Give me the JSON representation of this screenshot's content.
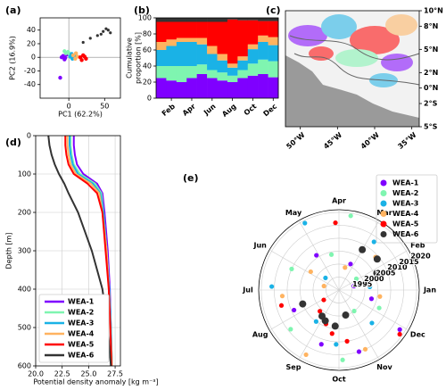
{
  "chart_data": [
    {
      "type": "scatter",
      "label": "(a)",
      "xlabel": "PC1 (62.2%)",
      "ylabel": "PC2 (16.9%)",
      "xlim": [
        -40,
        72
      ],
      "ylim": [
        -60,
        58
      ],
      "xticks": [
        0,
        50
      ],
      "yticks": [
        -40,
        -20,
        0,
        20,
        40
      ],
      "series": [
        {
          "name": "WEA-1",
          "color": "#7f00ff",
          "x": [
            -8,
            -5,
            -3,
            -10,
            -6,
            -12
          ],
          "values": [
            2,
            -1,
            4,
            0,
            -3,
            -30
          ]
        },
        {
          "name": "WEA-2",
          "color": "#7ff5b0",
          "x": [
            -4,
            -1,
            2,
            -6,
            1
          ],
          "values": [
            6,
            8,
            3,
            9,
            5
          ]
        },
        {
          "name": "WEA-3",
          "color": "#1ab2e6",
          "x": [
            2,
            5,
            8,
            4,
            7
          ],
          "values": [
            1,
            -2,
            2,
            5,
            -1
          ]
        },
        {
          "name": "WEA-4",
          "color": "#ffb360",
          "x": [
            6,
            10,
            12,
            9
          ],
          "values": [
            3,
            6,
            1,
            -2
          ]
        },
        {
          "name": "WEA-5",
          "color": "#ff0000",
          "x": [
            16,
            20,
            24,
            18,
            22
          ],
          "values": [
            0,
            3,
            -2,
            -4,
            1
          ]
        },
        {
          "name": "WEA-6",
          "color": "#333333",
          "x": [
            20,
            30,
            40,
            48,
            52,
            55,
            58,
            45
          ],
          "values": [
            22,
            28,
            32,
            38,
            42,
            40,
            36,
            34
          ]
        }
      ]
    },
    {
      "type": "stacked-bar",
      "label": "(b)",
      "ylabel": [
        "Cumulative",
        "proportion [%]"
      ],
      "categories": [
        null,
        "Feb",
        null,
        "Apr",
        null,
        "Jun",
        null,
        "Aug",
        null,
        "Oct",
        null,
        "Dec"
      ],
      "ylim": [
        0,
        100
      ],
      "yticks": [
        0,
        20,
        40,
        60,
        80,
        100
      ],
      "series": [
        {
          "name": "WEA-1",
          "color": "#7f00ff",
          "values": [
            25,
            22,
            20,
            25,
            30,
            25,
            22,
            20,
            25,
            28,
            30,
            26
          ]
        },
        {
          "name": "WEA-2",
          "color": "#7ff5b0",
          "values": [
            15,
            18,
            20,
            15,
            12,
            10,
            10,
            8,
            10,
            15,
            18,
            20
          ]
        },
        {
          "name": "WEA-3",
          "color": "#1ab2e6",
          "values": [
            20,
            25,
            30,
            30,
            25,
            20,
            15,
            10,
            12,
            18,
            22,
            20
          ]
        },
        {
          "name": "WEA-4",
          "color": "#ffb360",
          "values": [
            10,
            8,
            5,
            5,
            8,
            10,
            8,
            5,
            5,
            6,
            8,
            10
          ]
        },
        {
          "name": "WEA-5",
          "color": "#ff0000",
          "values": [
            25,
            22,
            20,
            20,
            20,
            30,
            40,
            55,
            45,
            30,
            18,
            20
          ]
        },
        {
          "name": "WEA-6",
          "color": "#333333",
          "values": [
            5,
            5,
            5,
            5,
            5,
            5,
            5,
            2,
            3,
            3,
            4,
            4
          ]
        }
      ]
    },
    {
      "type": "map",
      "label": "(c)",
      "xlim": [
        -52,
        -34
      ],
      "ylim": [
        -5,
        10
      ],
      "xticks": [
        {
          "value": -50,
          "label": "50°W"
        },
        {
          "value": -45,
          "label": "45°W"
        },
        {
          "value": -40,
          "label": "40°W"
        },
        {
          "value": -35,
          "label": "35°W"
        }
      ],
      "yticks": [
        {
          "value": 10,
          "label": "10°N"
        },
        {
          "value": 8,
          "label": "8°N"
        },
        {
          "value": 5,
          "label": "5°N"
        },
        {
          "value": 2,
          "label": "2°N"
        },
        {
          "value": 0,
          "label": "0°N"
        },
        {
          "value": -2,
          "label": "2°S"
        },
        {
          "value": -5,
          "label": "5°S"
        }
      ]
    },
    {
      "type": "profile",
      "label": "(d)",
      "xlabel": "Potential density anomaly [kg m⁻³]",
      "ylabel": "Depth [m]",
      "xlim": [
        20,
        28
      ],
      "ylim": [
        600,
        0
      ],
      "grid": true,
      "xticks": [
        {
          "value": 20,
          "label": "20.0"
        },
        {
          "value": 22.5,
          "label": "22.5"
        },
        {
          "value": 25,
          "label": "25.0"
        },
        {
          "value": 27.5,
          "label": "27.5"
        }
      ],
      "yticks": [
        0,
        100,
        200,
        300,
        400,
        500,
        600
      ],
      "y": [
        0,
        25,
        50,
        75,
        100,
        125,
        150,
        200,
        300,
        400,
        500,
        600
      ],
      "series": [
        {
          "name": "WEA-1",
          "color": "#7f00ff",
          "values": [
            23.6,
            23.6,
            23.7,
            23.9,
            24.5,
            25.8,
            26.3,
            26.5,
            26.8,
            27.0,
            27.1,
            27.2
          ]
        },
        {
          "name": "WEA-2",
          "color": "#7ff5b0",
          "values": [
            23.3,
            23.3,
            23.4,
            23.6,
            24.2,
            25.6,
            26.2,
            26.4,
            26.7,
            26.95,
            27.1,
            27.2
          ]
        },
        {
          "name": "WEA-3",
          "color": "#1ab2e6",
          "values": [
            23.2,
            23.2,
            23.3,
            23.5,
            24.0,
            25.4,
            26.1,
            26.4,
            26.7,
            26.95,
            27.1,
            27.2
          ]
        },
        {
          "name": "WEA-4",
          "color": "#ffb360",
          "values": [
            23.0,
            23.0,
            23.1,
            23.3,
            23.8,
            25.2,
            26.0,
            26.3,
            26.7,
            26.9,
            27.05,
            27.2
          ]
        },
        {
          "name": "WEA-5",
          "color": "#ff0000",
          "values": [
            22.8,
            22.8,
            22.9,
            23.1,
            23.6,
            24.9,
            25.8,
            26.3,
            26.6,
            26.9,
            27.05,
            27.15
          ]
        },
        {
          "name": "WEA-6",
          "color": "#333333",
          "values": [
            21.2,
            21.3,
            21.5,
            21.8,
            22.2,
            22.7,
            23.1,
            24.0,
            25.3,
            26.3,
            26.8,
            27.1
          ]
        }
      ]
    },
    {
      "type": "polar-scatter",
      "label": "(e)",
      "theta_labels": [
        "Jan",
        "Feb",
        "Mar",
        "Apr",
        "May",
        "Jun",
        "Jul",
        "Aug",
        "Sep",
        "Oct",
        "Nov",
        "Dec"
      ],
      "rlim": [
        1990,
        2021
      ],
      "rticks": [
        1995,
        2000,
        2005,
        2010,
        2015,
        2020
      ],
      "series": [
        {
          "name": "WEA-1",
          "color": "#7f00ff",
          "theta": [
            1.5,
            3.2,
            5.1,
            7.8,
            9.4,
            10.6,
            11.9,
            12.5
          ],
          "r": [
            1996,
            2001,
            2006,
            2009,
            2012,
            2015,
            2018,
            2003
          ]
        },
        {
          "name": "WEA-2",
          "color": "#7ff5b0",
          "theta": [
            2.1,
            4.4,
            6.2,
            8.3,
            10.1,
            11.2,
            12.2,
            3.7
          ],
          "r": [
            1998,
            2004,
            2010,
            2014,
            2017,
            2000,
            2007,
            2019
          ]
        },
        {
          "name": "WEA-3",
          "color": "#1ab2e6",
          "theta": [
            1.2,
            2.8,
            5.6,
            6.9,
            8.8,
            9.9,
            11.5,
            4.9
          ],
          "r": [
            2002,
            2013,
            1997,
            2016,
            2005,
            2011,
            2008,
            2019
          ]
        },
        {
          "name": "WEA-4",
          "color": "#ffb360",
          "theta": [
            3.5,
            5.9,
            7.2,
            9.1,
            10.8,
            12.7,
            2.4,
            6.5
          ],
          "r": [
            1999,
            2003,
            2012,
            2018,
            2015,
            2006,
            2009,
            1996
          ]
        },
        {
          "name": "WEA-5",
          "color": "#ff0000",
          "theta": [
            8.1,
            8.6,
            9.3,
            9.7,
            10.3,
            7.5,
            4.1,
            11.8
          ],
          "r": [
            1997,
            2001,
            2004,
            2007,
            2010,
            2013,
            2016,
            2019
          ]
        },
        {
          "name": "WEA-6",
          "color": "#333333",
          "theta": [
            1.8,
            2.3,
            3.0,
            8.9,
            9.8,
            10.5,
            7.7,
            9.2
          ],
          "r": [
            2006,
            2009,
            2008,
            2002,
            2004,
            2000,
            2005,
            2003
          ]
        }
      ]
    }
  ]
}
